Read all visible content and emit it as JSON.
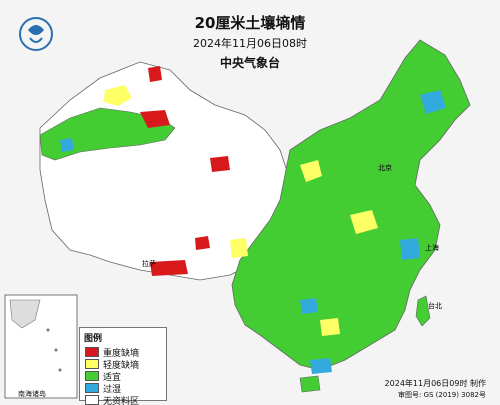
{
  "title": "20厘米土壤墒情",
  "subtitle": "2024年11月06日08时",
  "issuer": "中央气象台",
  "legend": {
    "title": "图例",
    "items": [
      {
        "label": "重度缺墒",
        "color": "#d7191c"
      },
      {
        "label": "轻度缺墒",
        "color": "#ffff66"
      },
      {
        "label": "适宜",
        "color": "#44cc33"
      },
      {
        "label": "过湿",
        "color": "#33aadd"
      },
      {
        "label": "无资料区",
        "color": "#ffffff"
      }
    ]
  },
  "inset": {
    "label": "南海诸岛"
  },
  "footer": {
    "made": "2024年11月06日09时 制作",
    "approval": "审图号: GS (2019) 3082号"
  },
  "place_labels": {
    "beijing": "北京",
    "shanghai": "上海",
    "taipei": "台北",
    "lhasa": "拉萨"
  }
}
